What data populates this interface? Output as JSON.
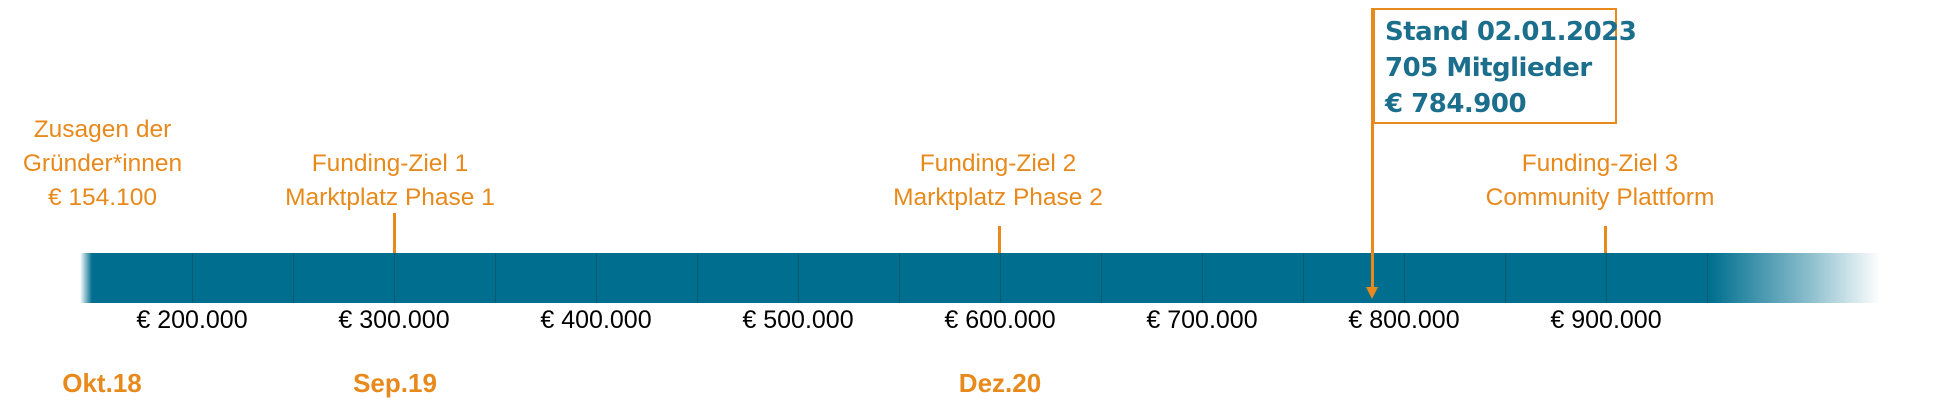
{
  "start_label": {
    "lines": [
      "Zusagen der",
      "Gründer*innen",
      "€ 154.100"
    ]
  },
  "goals": [
    {
      "lines": [
        "Funding-Ziel 1",
        "Marktplatz Phase 1"
      ]
    },
    {
      "lines": [
        "Funding-Ziel 2",
        "Marktplatz Phase 2"
      ]
    },
    {
      "lines": [
        "Funding-Ziel 3",
        "Community Plattform"
      ]
    }
  ],
  "amounts": [
    "€ 200.000",
    "€ 300.000",
    "€ 400.000",
    "€ 500.000",
    "€ 600.000",
    "€ 700.000",
    "€ 800.000",
    "€ 900.000"
  ],
  "dates": [
    "Okt.18",
    "Sep.19",
    "Dez.20"
  ],
  "status": {
    "lines": [
      "Stand 02.01.2023",
      "705 Mitglieder",
      "€ 784.900"
    ]
  },
  "colors": {
    "accent": "#e8891c",
    "bar": "#006f8f",
    "status_text": "#1c6f8c"
  }
}
